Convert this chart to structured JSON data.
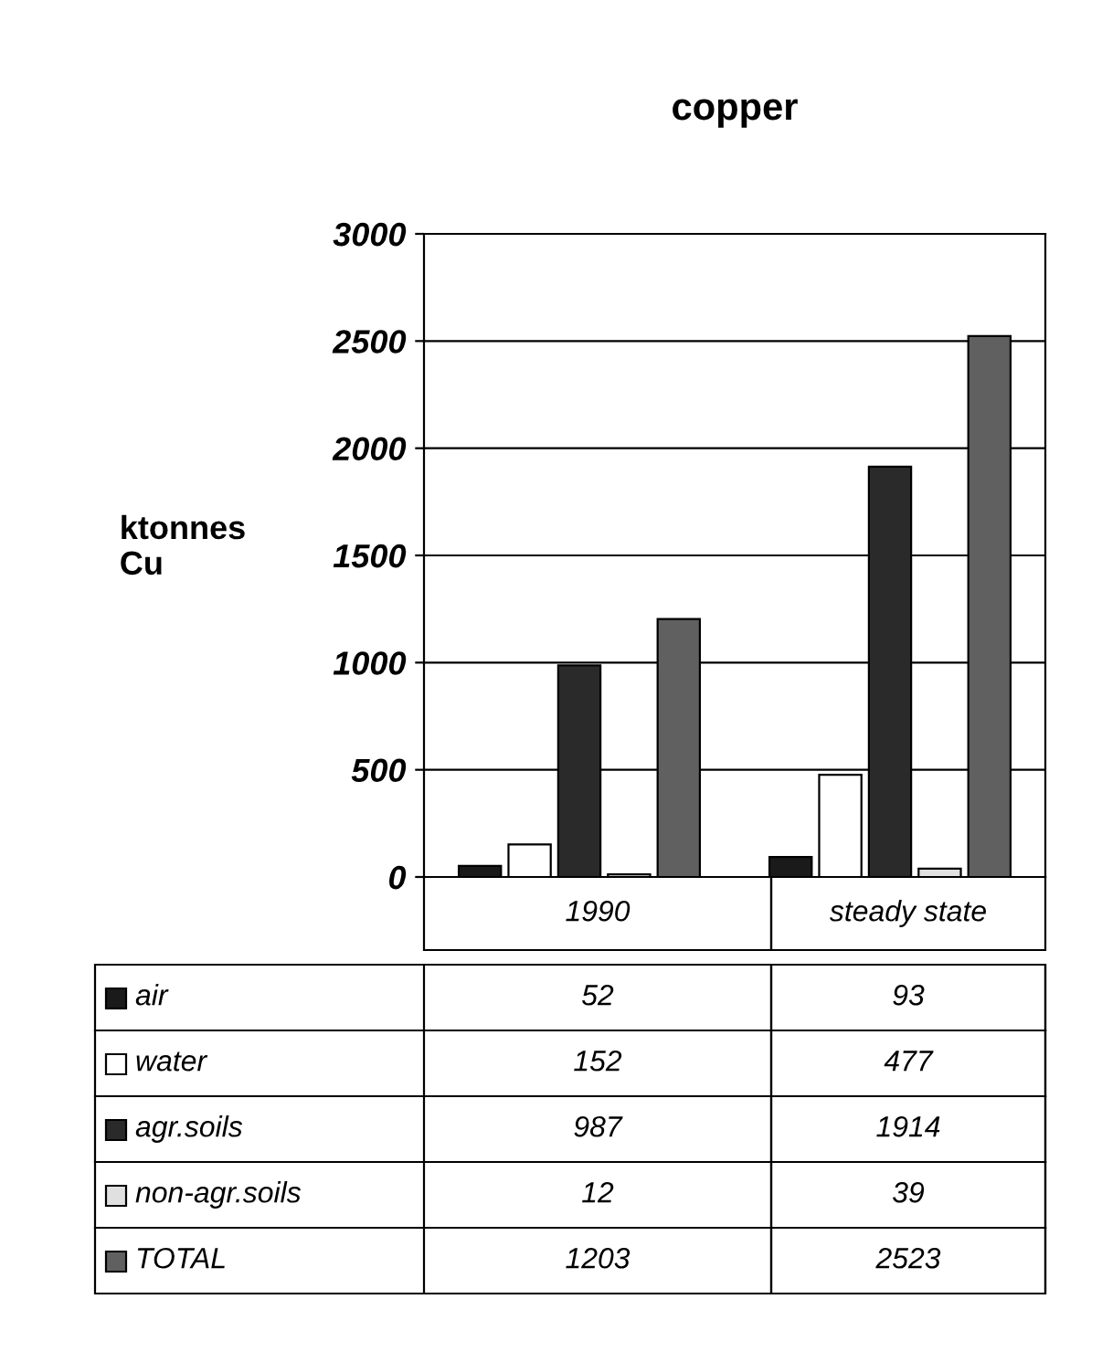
{
  "chart_data": {
    "type": "bar",
    "title": "copper",
    "ylabel": "ktonnes\nCu",
    "categories": [
      "1990",
      "steady state"
    ],
    "series": [
      {
        "name": "air",
        "color": "#1a1a1a",
        "values": [
          52,
          93
        ]
      },
      {
        "name": "water",
        "color": "#ffffff",
        "values": [
          152,
          477
        ]
      },
      {
        "name": "agr.soils",
        "color": "#2a2a2a",
        "values": [
          987,
          1914
        ]
      },
      {
        "name": "non-agr.soils",
        "color": "#e0e0e0",
        "values": [
          12,
          39
        ]
      },
      {
        "name": "TOTAL",
        "color": "#606060",
        "values": [
          1203,
          2523
        ]
      }
    ],
    "ylim": [
      0,
      3000
    ],
    "yticks": [
      0,
      500,
      1000,
      1500,
      2000,
      2500,
      3000
    ],
    "grid": "y",
    "legend": "bottom",
    "data_labels": true
  }
}
